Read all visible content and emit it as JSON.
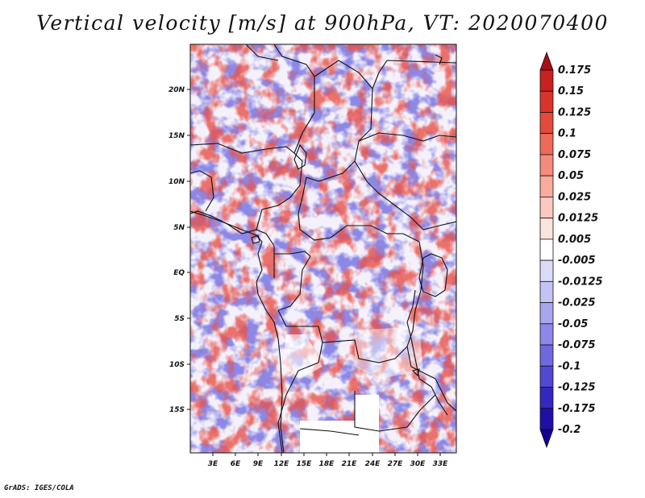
{
  "title": "Vertical velocity [m/s] at 900hPa, VT: 2020070400",
  "credit": "GrADS: IGES/COLA",
  "map": {
    "lat_labels": [
      "20N",
      "15N",
      "10N",
      "5N",
      "EQ",
      "5S",
      "10S",
      "15S"
    ],
    "lon_labels": [
      "3E",
      "6E",
      "9E",
      "12E",
      "15E",
      "18E",
      "21E",
      "24E",
      "27E",
      "30E",
      "33E"
    ]
  },
  "colorbar": {
    "levels": [
      "0.175",
      "0.15",
      "0.125",
      "0.1",
      "0.075",
      "0.05",
      "0.025",
      "0.0125",
      "0.005",
      "-0.005",
      "-0.0125",
      "-0.025",
      "-0.05",
      "-0.075",
      "-0.1",
      "-0.125",
      "-0.175",
      "-0.2"
    ],
    "colors": [
      "#a50f15",
      "#c8201f",
      "#d8342b",
      "#e34a3b",
      "#ee6b5b",
      "#f48b7c",
      "#f8ab9e",
      "#fbc9c0",
      "#fde3de",
      "#ffffff",
      "#dcdcfa",
      "#c4c3f6",
      "#a9a6f0",
      "#8d88ea",
      "#6f69e0",
      "#5148d4",
      "#3427c0",
      "#1f0fa6",
      "#120090"
    ]
  }
}
